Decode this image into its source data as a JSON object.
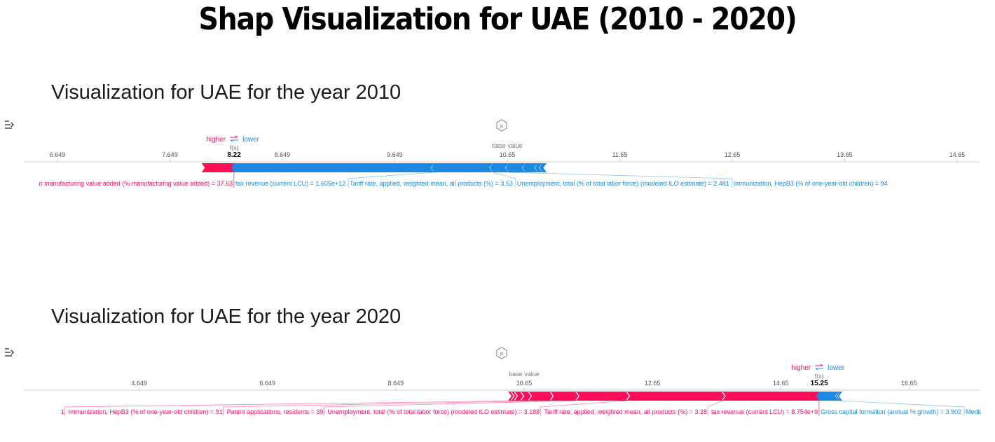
{
  "page": {
    "title": "Shap Visualization for UAE (2010 - 2020)",
    "js_badge": "js"
  },
  "colors": {
    "positive": "#ff0d57",
    "negative": "#1e88e5",
    "axis": "#cccccc",
    "tick_text": "#555555",
    "title_text": "#000000"
  },
  "chart_data": [
    {
      "type": "shap-force",
      "section_title": "Visualization for UAE for the year 2010",
      "higher_label": "higher",
      "lower_label": "lower",
      "fx_label": "f(x)",
      "base_label": "base value",
      "output_value": 8.22,
      "output_label": "8.22",
      "base_value": 10.65,
      "xlim": [
        6.35,
        14.85
      ],
      "ticks": [
        6.649,
        7.649,
        8.649,
        9.649,
        10.65,
        11.65,
        12.65,
        13.65,
        14.65
      ],
      "tick_labels": [
        "6.649",
        "7.649",
        "8.649",
        "9.649",
        "10.65",
        "11.65",
        "12.65",
        "13.65",
        "14.65"
      ],
      "features": [
        {
          "label": "n manufacturing value added (% manufacturing value added) = 37.63",
          "from": 7.93,
          "to": 8.22,
          "sign": "positive"
        },
        {
          "label": "tax revenue (current LCU) = 1.605e+12",
          "from": 8.22,
          "to": 10.0,
          "sign": "negative"
        },
        {
          "label": "Tariff rate, applied, weighted mean, all products (%) = 3.53",
          "from": 10.0,
          "to": 10.52,
          "sign": "negative"
        },
        {
          "label": "Unemployment, total (% of total labor force) (modeled ILO estimate) = 2.481",
          "from": 10.52,
          "to": 10.66,
          "sign": "negative"
        },
        {
          "label": "Immunization, HepB3 (% of one-year-old children) = 94",
          "from": 10.66,
          "to": 10.81,
          "sign": "negative"
        },
        {
          "label": "",
          "from": 10.81,
          "to": 10.92,
          "sign": "negative"
        },
        {
          "label": "",
          "from": 10.92,
          "to": 10.96,
          "sign": "negative"
        },
        {
          "label": "",
          "from": 10.96,
          "to": 11.0,
          "sign": "negative"
        }
      ]
    },
    {
      "type": "shap-force",
      "section_title": "Visualization for UAE for the year 2020",
      "higher_label": "higher",
      "lower_label": "lower",
      "fx_label": "f(x)",
      "base_label": "base value",
      "output_value": 15.25,
      "output_label": "15.25",
      "base_value": 10.65,
      "xlim": [
        2.85,
        17.75
      ],
      "ticks": [
        4.649,
        6.649,
        8.649,
        10.65,
        12.65,
        14.65,
        16.65
      ],
      "tick_labels": [
        "4.649",
        "6.649",
        "8.649",
        "10.65",
        "12.65",
        "14.65",
        "16.65"
      ],
      "features": [
        {
          "label": "",
          "from": 10.4,
          "to": 10.45,
          "sign": "positive"
        },
        {
          "label": "",
          "from": 10.45,
          "to": 10.5,
          "sign": "positive"
        },
        {
          "label": "",
          "from": 10.5,
          "to": 10.6,
          "sign": "positive"
        },
        {
          "label": "1",
          "from": 10.6,
          "to": 10.72,
          "sign": "positive"
        },
        {
          "label": "Immunization, HepB3 (% of one-year-old children) = 91",
          "from": 10.72,
          "to": 11.06,
          "sign": "positive"
        },
        {
          "label": "Patent applications, residents = 39",
          "from": 11.06,
          "to": 11.46,
          "sign": "positive"
        },
        {
          "label": "Unemployment, total (% of total labor force) (modeled ILO estimate) = 3.188",
          "from": 11.46,
          "to": 12.25,
          "sign": "positive"
        },
        {
          "label": "Tariff rate, applied, weighted mean, all products (%) = 3.28",
          "from": 12.25,
          "to": 13.74,
          "sign": "positive"
        },
        {
          "label": "tax revenue (current LCU) = 8.754e+9",
          "from": 13.74,
          "to": 15.25,
          "sign": "positive"
        },
        {
          "label": "Gross capital formation (annual % growth) = 3.902",
          "from": 15.25,
          "to": 15.55,
          "sign": "negative"
        },
        {
          "label": "Medium an",
          "from": 15.55,
          "to": 15.58,
          "sign": "negative"
        },
        {
          "label": "",
          "from": 15.58,
          "to": 15.61,
          "sign": "negative"
        }
      ]
    }
  ]
}
